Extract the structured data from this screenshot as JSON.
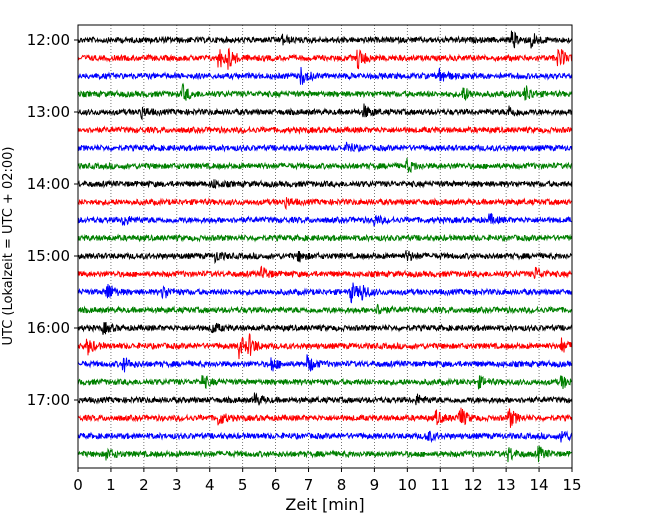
{
  "chart_data": {
    "type": "line",
    "title": "",
    "xlabel": "Zeit  [min]",
    "ylabel": "UTC (Lokalzeit = UTC + 02:00)",
    "xlim": [
      0,
      15
    ],
    "x_ticks": [
      "0",
      "1",
      "2",
      "3",
      "4",
      "5",
      "6",
      "7",
      "8",
      "9",
      "10",
      "11",
      "12",
      "13",
      "14",
      "15"
    ],
    "y_ticks": [
      "12:00",
      "13:00",
      "14:00",
      "15:00",
      "16:00",
      "17:00"
    ],
    "grid": "vertical dotted at each minute",
    "trace_interval_min": 15,
    "trace_count": 24,
    "colors": [
      "#000000",
      "#ff0000",
      "#0000ff",
      "#008000"
    ],
    "events": [
      [
        [
          6.2,
          1.5
        ],
        [
          13.2,
          2.5
        ],
        [
          13.8,
          2.2
        ]
      ],
      [
        [
          4.3,
          3
        ],
        [
          4.6,
          2.5
        ],
        [
          8.5,
          3.5
        ],
        [
          14.6,
          3.5
        ]
      ],
      [
        [
          6.8,
          2.5
        ],
        [
          11.0,
          2.5
        ]
      ],
      [
        [
          3.2,
          2.5
        ],
        [
          11.7,
          2
        ],
        [
          13.6,
          2.5
        ]
      ],
      [
        [
          1.9,
          2
        ],
        [
          8.7,
          2
        ],
        [
          13.1,
          1.8
        ]
      ],
      [],
      [
        [
          8.2,
          1.5
        ]
      ],
      [
        [
          10.0,
          2
        ]
      ],
      [
        [
          4.1,
          1.2
        ]
      ],
      [
        [
          6.3,
          1.5
        ]
      ],
      [
        [
          1.4,
          1.5
        ],
        [
          9.0,
          1.5
        ],
        [
          12.5,
          1.5
        ]
      ],
      [],
      [
        [
          4.2,
          1.5
        ],
        [
          6.7,
          1.5
        ],
        [
          10.0,
          1.5
        ]
      ],
      [
        [
          5.6,
          2
        ],
        [
          13.9,
          2
        ]
      ],
      [
        [
          0.9,
          3
        ],
        [
          2.6,
          2
        ],
        [
          8.3,
          3
        ],
        [
          8.6,
          2.5
        ]
      ],
      [
        [
          9.1,
          1.5
        ]
      ],
      [
        [
          0.8,
          1.5
        ],
        [
          4.1,
          1.5
        ]
      ],
      [
        [
          0.3,
          2.5
        ],
        [
          4.9,
          3.5
        ],
        [
          5.2,
          3
        ],
        [
          14.7,
          2
        ]
      ],
      [
        [
          1.4,
          2
        ],
        [
          5.9,
          2
        ],
        [
          7.0,
          2.5
        ]
      ],
      [
        [
          3.8,
          2
        ],
        [
          12.2,
          1.5
        ],
        [
          14.7,
          1.8
        ]
      ],
      [
        [
          5.4,
          1.8
        ],
        [
          10.3,
          1.5
        ]
      ],
      [
        [
          4.3,
          2
        ],
        [
          10.9,
          2
        ],
        [
          11.6,
          3.5
        ],
        [
          13.1,
          3
        ]
      ],
      [
        [
          10.6,
          1.8
        ],
        [
          14.7,
          1.8
        ]
      ],
      [
        [
          0.9,
          1.5
        ],
        [
          13.1,
          2
        ],
        [
          14.0,
          2
        ]
      ]
    ]
  }
}
